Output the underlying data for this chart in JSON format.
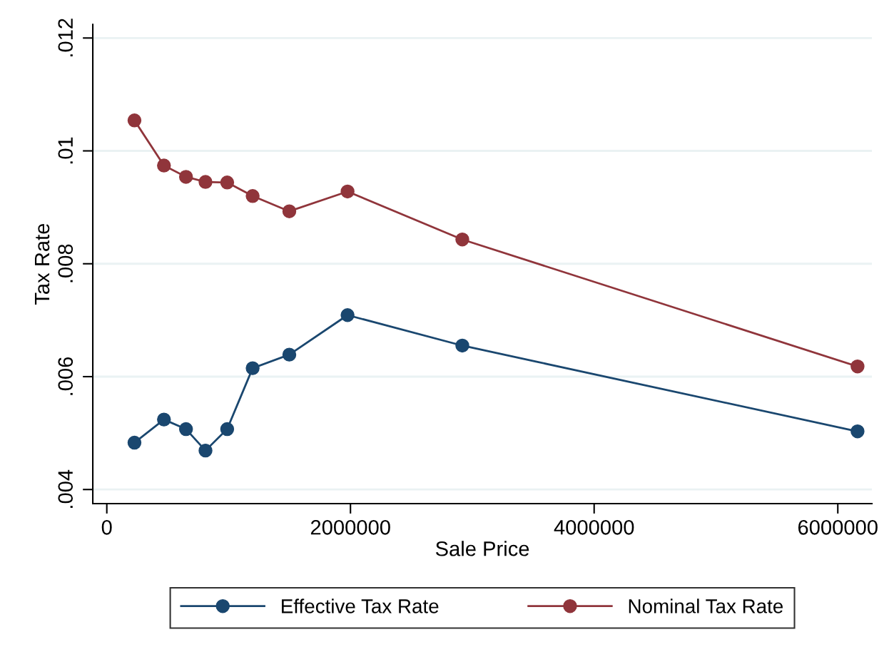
{
  "chart_data": {
    "type": "line",
    "xlabel": "Sale Price",
    "ylabel": "Tax Rate",
    "x": [
      227000,
      469000,
      650000,
      810000,
      988000,
      1197000,
      1498000,
      1976000,
      2918000,
      6162000
    ],
    "series": [
      {
        "name": "Effective Tax Rate",
        "color": "#1a476f",
        "values": [
          0.00483,
          0.00524,
          0.00507,
          0.00469,
          0.00507,
          0.00615,
          0.00639,
          0.00709,
          0.00655,
          0.00503
        ]
      },
      {
        "name": "Nominal Tax Rate",
        "color": "#90353b",
        "values": [
          0.01054,
          0.00974,
          0.00954,
          0.00945,
          0.00944,
          0.0092,
          0.00893,
          0.00928,
          0.00843,
          0.00618
        ]
      }
    ],
    "xlim": [
      -115000,
      6280000
    ],
    "ylim": [
      0.00375,
      0.01224
    ],
    "xticks": [
      0,
      2000000,
      4000000,
      6000000
    ],
    "yticks": [
      {
        "value": 0.004,
        "label": ".004"
      },
      {
        "value": 0.006,
        "label": ".006"
      },
      {
        "value": 0.008,
        "label": ".008"
      },
      {
        "value": 0.01,
        "label": ".01"
      },
      {
        "value": 0.012,
        "label": ".012"
      }
    ],
    "grid": "y",
    "legend": "bottom",
    "marker": "circle",
    "line_style": "solid"
  }
}
